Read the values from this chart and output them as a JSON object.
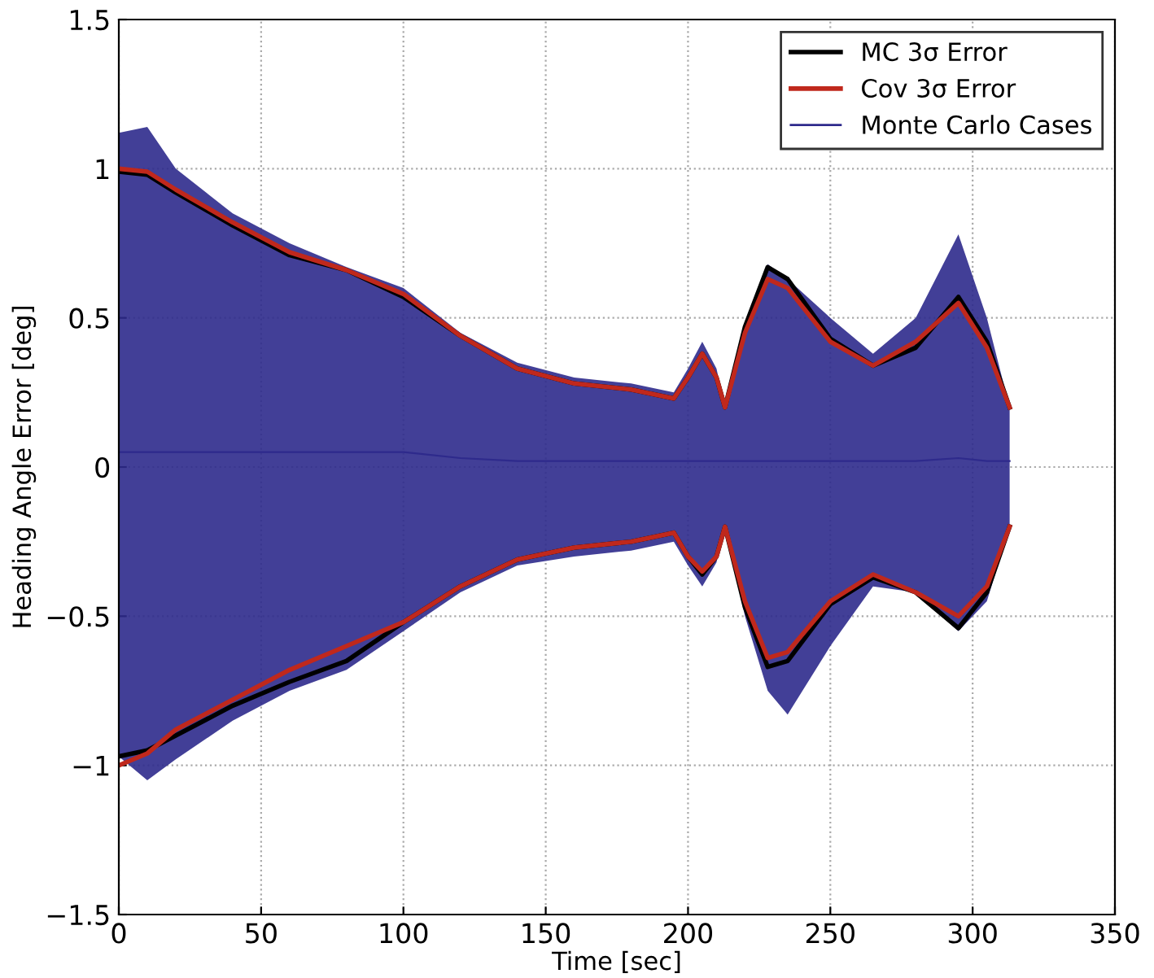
{
  "chart_data": {
    "type": "line",
    "xlabel": "Time [sec]",
    "ylabel": "Heading Angle Error [deg]",
    "x": [
      0,
      10,
      20,
      40,
      60,
      80,
      100,
      120,
      140,
      160,
      180,
      195,
      200,
      205,
      210,
      213,
      220,
      228,
      235,
      250,
      265,
      280,
      295,
      305,
      313
    ],
    "xlim": [
      0,
      350
    ],
    "xticks": [
      0,
      50,
      100,
      150,
      200,
      250,
      300,
      350
    ],
    "ylim": [
      -1.5,
      1.5
    ],
    "yticks": [
      {
        "value": -1.5,
        "label": "−1.5"
      },
      {
        "value": -1,
        "label": "−1"
      },
      {
        "value": -0.5,
        "label": "−0.5"
      },
      0,
      0.5,
      1,
      1.5
    ],
    "grid": true,
    "legend": "top right",
    "series": [
      {
        "name": "Monte Carlo Cases",
        "color": "#2e2a8c",
        "values": [
          0.05,
          0.05,
          0.05,
          0.05,
          0.05,
          0.05,
          0.05,
          0.03,
          0.02,
          0.02,
          0.02,
          0.02,
          0.02,
          0.02,
          0.02,
          0.02,
          0.02,
          0.02,
          0.02,
          0.02,
          0.02,
          0.02,
          0.03,
          0.02,
          0.02
        ],
        "upper": [
          1.12,
          1.14,
          1.0,
          0.85,
          0.75,
          0.67,
          0.6,
          0.45,
          0.35,
          0.3,
          0.28,
          0.25,
          0.33,
          0.42,
          0.33,
          0.2,
          0.48,
          0.68,
          0.63,
          0.5,
          0.38,
          0.5,
          0.78,
          0.5,
          0.2
        ],
        "lower": [
          -0.97,
          -1.05,
          -0.98,
          -0.85,
          -0.75,
          -0.68,
          -0.55,
          -0.42,
          -0.33,
          -0.3,
          -0.28,
          -0.25,
          -0.33,
          -0.4,
          -0.32,
          -0.2,
          -0.5,
          -0.75,
          -0.83,
          -0.6,
          -0.4,
          -0.42,
          -0.55,
          -0.45,
          -0.2
        ]
      },
      {
        "name": "MC 3σ Error",
        "color": "#000000",
        "values": [
          0.99,
          0.98,
          0.92,
          0.81,
          0.71,
          0.66,
          0.57,
          0.44,
          0.33,
          0.28,
          0.26,
          0.23,
          0.3,
          0.38,
          0.3,
          0.2,
          0.47,
          0.67,
          0.63,
          0.43,
          0.34,
          0.4,
          0.57,
          0.42,
          0.2
        ]
      },
      {
        "color": "#000000",
        "values": [
          -0.97,
          -0.95,
          -0.9,
          -0.8,
          -0.72,
          -0.65,
          -0.52,
          -0.4,
          -0.31,
          -0.27,
          -0.25,
          -0.22,
          -0.3,
          -0.36,
          -0.3,
          -0.2,
          -0.47,
          -0.67,
          -0.65,
          -0.46,
          -0.37,
          -0.42,
          -0.54,
          -0.42,
          -0.2
        ]
      },
      {
        "name": "Cov 3σ Error",
        "color": "#c0281c",
        "values": [
          1.0,
          0.99,
          0.93,
          0.82,
          0.72,
          0.66,
          0.58,
          0.44,
          0.33,
          0.28,
          0.26,
          0.23,
          0.3,
          0.38,
          0.3,
          0.2,
          0.45,
          0.63,
          0.6,
          0.42,
          0.34,
          0.42,
          0.55,
          0.4,
          0.2
        ]
      },
      {
        "color": "#c0281c",
        "values": [
          -1.0,
          -0.96,
          -0.88,
          -0.78,
          -0.68,
          -0.6,
          -0.52,
          -0.4,
          -0.31,
          -0.27,
          -0.25,
          -0.22,
          -0.3,
          -0.35,
          -0.3,
          -0.2,
          -0.45,
          -0.64,
          -0.62,
          -0.45,
          -0.36,
          -0.42,
          -0.5,
          -0.4,
          -0.2
        ]
      }
    ]
  }
}
